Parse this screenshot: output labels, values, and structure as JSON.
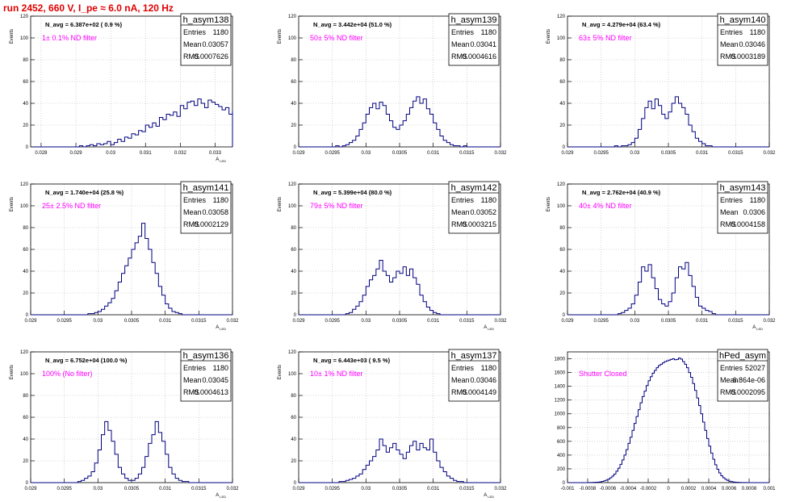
{
  "run_title": "run 2452,   660 V, I_pe ≈ 6.0 nA, 120 Hz",
  "colors": {
    "title": "#e00000",
    "histogram": "#000080",
    "annotation": "#ff00ff",
    "grid": "#b4b4b4",
    "frame": "#000000"
  },
  "stats_labels": {
    "entries": "Entries",
    "mean": "Mean",
    "rms": "RMS"
  },
  "chart_data": [
    {
      "type": "histogram",
      "name": "h_asym138",
      "nevt_text": "N_avg = 6.387e+02 ( 0.9 %)",
      "note": "1± 0.1% ND filter",
      "entries": "1180",
      "mean": "0.03057",
      "rms": "0.0007626",
      "ylabel": "Events",
      "xlabel": "A_LED",
      "xlim": [
        0.0277,
        0.0335
      ],
      "ylim": [
        0,
        120
      ],
      "xticks": [
        "0.028",
        "0.029",
        "0.03",
        "0.031",
        "0.032",
        "0.033"
      ],
      "xtick_values": [
        0.028,
        0.029,
        0.03,
        0.031,
        0.032,
        0.033
      ],
      "yticks": [
        "0",
        "20",
        "40",
        "60",
        "80",
        "100",
        "120"
      ],
      "ytick_values": [
        0,
        20,
        40,
        60,
        80,
        100,
        120
      ],
      "bins": {
        "x0": 0.0278,
        "width": 0.0001,
        "counts": [
          0,
          0,
          0,
          0,
          0,
          0,
          0,
          0,
          0,
          0,
          0,
          0,
          0,
          1,
          0,
          1,
          2,
          1,
          3,
          2,
          3,
          5,
          2,
          4,
          7,
          5,
          9,
          8,
          12,
          11,
          15,
          14,
          20,
          18,
          22,
          19,
          27,
          25,
          30,
          29,
          32,
          28,
          38,
          35,
          41,
          42,
          38,
          44,
          40,
          36,
          43,
          41,
          39,
          37,
          34,
          36,
          30,
          33,
          27,
          29,
          24,
          26,
          20,
          21,
          17,
          18,
          12,
          13,
          9,
          11,
          6,
          7,
          4,
          3,
          2,
          3,
          1,
          1,
          0,
          0,
          1,
          0,
          0,
          0,
          0,
          0,
          0,
          0,
          0,
          0
        ]
      }
    },
    {
      "type": "histogram",
      "name": "h_asym139",
      "nevt_text": "N_avg = 3.442e+04 (51.0 %)",
      "note": "50± 5% ND filter",
      "entries": "1180",
      "mean": "0.03041",
      "rms": "0.0004616",
      "ylabel": "Events",
      "xlabel": "",
      "xlim": [
        0.029,
        0.032
      ],
      "ylim": [
        0,
        120
      ],
      "xticks": [
        "0.029",
        "0.0295",
        "0.03",
        "0.0305",
        "0.031",
        "0.0315",
        "0.032"
      ],
      "xtick_values": [
        0.029,
        0.0295,
        0.03,
        0.0305,
        0.031,
        0.0315,
        0.032
      ],
      "yticks": [
        "0",
        "20",
        "40",
        "60",
        "80",
        "100",
        "120"
      ],
      "ytick_values": [
        0,
        20,
        40,
        60,
        80,
        100,
        120
      ],
      "bins": {
        "x0": 0.029,
        "width": 5e-05,
        "counts": [
          0,
          0,
          0,
          0,
          0,
          0,
          0,
          0,
          0,
          0,
          0,
          1,
          0,
          1,
          2,
          4,
          6,
          10,
          16,
          22,
          30,
          36,
          40,
          35,
          41,
          38,
          30,
          24,
          18,
          16,
          20,
          24,
          30,
          36,
          42,
          46,
          40,
          44,
          35,
          30,
          22,
          16,
          10,
          6,
          4,
          2,
          1,
          1,
          0,
          1,
          0,
          0,
          0,
          0,
          0,
          0,
          0,
          0,
          0,
          0
        ]
      }
    },
    {
      "type": "histogram",
      "name": "h_asym140",
      "nevt_text": "N_avg = 4.279e+04 (63.4 %)",
      "note": "63± 5% ND filter",
      "entries": "1180",
      "mean": "0.03046",
      "rms": "0.0003189",
      "ylabel": "Events",
      "xlabel": "",
      "xlim": [
        0.029,
        0.032
      ],
      "ylim": [
        0,
        120
      ],
      "xticks": [
        "0.029",
        "0.0295",
        "0.03",
        "0.0305",
        "0.031",
        "0.0315",
        "0.032"
      ],
      "xtick_values": [
        0.029,
        0.0295,
        0.03,
        0.0305,
        0.031,
        0.0315,
        0.032
      ],
      "yticks": [
        "0",
        "20",
        "40",
        "60",
        "80",
        "100",
        "120"
      ],
      "ytick_values": [
        0,
        20,
        40,
        60,
        80,
        100,
        120
      ],
      "bins": {
        "x0": 0.029,
        "width": 5e-05,
        "counts": [
          0,
          0,
          0,
          0,
          0,
          0,
          0,
          0,
          0,
          0,
          0,
          0,
          0,
          0,
          1,
          0,
          1,
          1,
          2,
          4,
          8,
          16,
          26,
          36,
          42,
          35,
          44,
          38,
          30,
          26,
          32,
          40,
          46,
          40,
          36,
          30,
          20,
          14,
          8,
          5,
          3,
          1,
          1,
          0,
          0,
          0,
          0,
          0,
          0,
          0,
          0,
          0,
          0,
          0,
          0,
          0,
          0,
          0,
          0,
          0
        ]
      }
    },
    {
      "type": "histogram",
      "name": "h_asym141",
      "nevt_text": "N_avg = 1.740e+04 (25.8 %)",
      "note": "25± 2.5% ND filter",
      "entries": "1180",
      "mean": "0.03058",
      "rms": "0.0002129",
      "ylabel": "Events",
      "xlabel": "A_LED",
      "xlim": [
        0.029,
        0.032
      ],
      "ylim": [
        0,
        120
      ],
      "xticks": [
        "0.029",
        "0.0295",
        "0.03",
        "0.0305",
        "0.031",
        "0.0315",
        "0.032"
      ],
      "xtick_values": [
        0.029,
        0.0295,
        0.03,
        0.0305,
        0.031,
        0.0315,
        0.032
      ],
      "yticks": [
        "0",
        "20",
        "40",
        "60",
        "80",
        "100",
        "120"
      ],
      "ytick_values": [
        0,
        20,
        40,
        60,
        80,
        100,
        120
      ],
      "bins": {
        "x0": 0.029,
        "width": 5e-05,
        "counts": [
          0,
          0,
          0,
          0,
          0,
          0,
          0,
          0,
          0,
          0,
          0,
          0,
          0,
          0,
          0,
          0,
          0,
          1,
          1,
          2,
          3,
          5,
          8,
          11,
          15,
          22,
          30,
          38,
          45,
          52,
          60,
          66,
          72,
          84,
          70,
          60,
          48,
          38,
          26,
          18,
          10,
          6,
          3,
          2,
          1,
          0,
          0,
          0,
          0,
          0,
          0,
          0,
          0,
          0,
          0,
          0,
          0,
          0,
          0,
          0
        ]
      }
    },
    {
      "type": "histogram",
      "name": "h_asym142",
      "nevt_text": "N_avg = 5.399e+04 (80.0 %)",
      "note": "79± 5% ND filter",
      "entries": "1180",
      "mean": "0.03052",
      "rms": "0.0003215",
      "ylabel": "Events",
      "xlabel": "A_LED",
      "xlim": [
        0.029,
        0.032
      ],
      "ylim": [
        0,
        120
      ],
      "xticks": [
        "0.029",
        "0.0295",
        "0.03",
        "0.0305",
        "0.031",
        "0.0315",
        "0.032"
      ],
      "xtick_values": [
        0.029,
        0.0295,
        0.03,
        0.0305,
        0.031,
        0.0315,
        0.032
      ],
      "yticks": [
        "0",
        "20",
        "40",
        "60",
        "80",
        "100",
        "120"
      ],
      "ytick_values": [
        0,
        20,
        40,
        60,
        80,
        100,
        120
      ],
      "bins": {
        "x0": 0.029,
        "width": 5e-05,
        "counts": [
          0,
          0,
          0,
          0,
          0,
          0,
          0,
          0,
          0,
          0,
          0,
          0,
          0,
          0,
          1,
          2,
          5,
          8,
          12,
          18,
          26,
          32,
          36,
          42,
          50,
          40,
          36,
          30,
          34,
          40,
          38,
          44,
          36,
          42,
          34,
          28,
          18,
          12,
          7,
          4,
          2,
          1,
          0,
          0,
          0,
          0,
          0,
          0,
          0,
          0,
          0,
          0,
          0,
          0,
          0,
          0,
          0,
          0,
          0,
          0
        ]
      }
    },
    {
      "type": "histogram",
      "name": "h_asym143",
      "nevt_text": "N_avg = 2.762e+04 (40.9 %)",
      "note": "40± 4% ND filter",
      "entries": "1180",
      "mean": "0.0306",
      "rms": "0.0004158",
      "ylabel": "Events",
      "xlabel": "A_LED",
      "xlim": [
        0.029,
        0.032
      ],
      "ylim": [
        0,
        120
      ],
      "xticks": [
        "0.029",
        "0.0295",
        "0.03",
        "0.0305",
        "0.031",
        "0.0315",
        "0.032"
      ],
      "xtick_values": [
        0.029,
        0.0295,
        0.03,
        0.0305,
        0.031,
        0.0315,
        0.032
      ],
      "yticks": [
        "0",
        "20",
        "40",
        "60",
        "80",
        "100",
        "120"
      ],
      "ytick_values": [
        0,
        20,
        40,
        60,
        80,
        100,
        120
      ],
      "bins": {
        "x0": 0.029,
        "width": 5e-05,
        "counts": [
          0,
          0,
          0,
          0,
          0,
          0,
          0,
          0,
          0,
          0,
          0,
          0,
          0,
          0,
          0,
          1,
          2,
          4,
          6,
          10,
          18,
          30,
          44,
          40,
          46,
          34,
          24,
          14,
          10,
          8,
          12,
          20,
          34,
          44,
          42,
          48,
          36,
          26,
          16,
          8,
          6,
          4,
          3,
          1,
          0,
          0,
          0,
          0,
          0,
          0,
          0,
          0,
          0,
          0,
          0,
          0,
          0,
          0,
          0,
          0
        ]
      }
    },
    {
      "type": "histogram",
      "name": "h_asym136",
      "nevt_text": "N_avg = 6.752e+04 (100.0 %)",
      "note": "100% (No filter)",
      "entries": "1180",
      "mean": "0.03045",
      "rms": "0.0004613",
      "ylabel": "Events",
      "xlabel": "A_LED",
      "xlim": [
        0.029,
        0.032
      ],
      "ylim": [
        0,
        120
      ],
      "xticks": [
        "0.029",
        "0.0295",
        "0.03",
        "0.0305",
        "0.031",
        "0.0315",
        "0.032"
      ],
      "xtick_values": [
        0.029,
        0.0295,
        0.03,
        0.0305,
        0.031,
        0.0315,
        0.032
      ],
      "yticks": [
        "0",
        "20",
        "40",
        "60",
        "80",
        "100",
        "120"
      ],
      "ytick_values": [
        0,
        20,
        40,
        60,
        80,
        100,
        120
      ],
      "bins": {
        "x0": 0.029,
        "width": 5e-05,
        "counts": [
          0,
          0,
          0,
          0,
          0,
          0,
          0,
          0,
          0,
          0,
          0,
          0,
          0,
          0,
          1,
          2,
          4,
          6,
          10,
          18,
          30,
          44,
          56,
          48,
          38,
          26,
          14,
          8,
          4,
          2,
          2,
          4,
          8,
          14,
          24,
          36,
          44,
          56,
          46,
          38,
          26,
          14,
          8,
          4,
          2,
          1,
          1,
          0,
          0,
          0,
          0,
          0,
          0,
          0,
          0,
          0,
          0,
          0,
          0,
          0
        ]
      }
    },
    {
      "type": "histogram",
      "name": "h_asym137",
      "nevt_text": "N_avg = 6.443e+03 ( 9.5 %)",
      "note": "10± 1% ND filter",
      "entries": "1180",
      "mean": "0.03046",
      "rms": "0.0004149",
      "ylabel": "Events",
      "xlabel": "A_LED",
      "xlim": [
        0.029,
        0.032
      ],
      "ylim": [
        0,
        120
      ],
      "xticks": [
        "0.029",
        "0.0295",
        "0.03",
        "0.0305",
        "0.031",
        "0.0315",
        "0.032"
      ],
      "xtick_values": [
        0.029,
        0.0295,
        0.03,
        0.0305,
        0.031,
        0.0315,
        0.032
      ],
      "yticks": [
        "0",
        "20",
        "40",
        "60",
        "80",
        "100",
        "120"
      ],
      "ytick_values": [
        0,
        20,
        40,
        60,
        80,
        100,
        120
      ],
      "bins": {
        "x0": 0.029,
        "width": 5e-05,
        "counts": [
          0,
          0,
          0,
          0,
          0,
          0,
          0,
          0,
          0,
          0,
          0,
          0,
          1,
          1,
          2,
          3,
          4,
          6,
          8,
          12,
          16,
          20,
          24,
          30,
          40,
          34,
          28,
          32,
          36,
          30,
          26,
          22,
          28,
          34,
          38,
          30,
          36,
          32,
          30,
          40,
          28,
          20,
          14,
          10,
          6,
          4,
          2,
          1,
          1,
          0,
          0,
          0,
          0,
          0,
          0,
          0,
          0,
          0,
          0,
          0
        ]
      }
    },
    {
      "type": "histogram",
      "name": "hPed_asym",
      "nevt_text": "",
      "note": "Shutter Closed",
      "entries": "52027",
      "mean": "6.864e-06",
      "rms": "0.0002095",
      "ylabel": "",
      "xlabel": "",
      "xlim": [
        -0.001,
        0.001
      ],
      "ylim": [
        0,
        1900
      ],
      "xticks": [
        "-0.001",
        "-0.0008",
        "-0.0006",
        "-0.0004",
        "-0.0002",
        "0",
        "0.0002",
        "0.0004",
        "0.0006",
        "0.0008",
        "0.001"
      ],
      "xtick_values": [
        -0.001,
        -0.0008,
        -0.0006,
        -0.0004,
        -0.0002,
        0,
        0.0002,
        0.0004,
        0.0006,
        0.0008,
        0.001
      ],
      "yticks": [
        "0",
        "200",
        "400",
        "600",
        "800",
        "1000",
        "1200",
        "1400",
        "1600",
        "1800"
      ],
      "ytick_values": [
        0,
        200,
        400,
        600,
        800,
        1000,
        1200,
        1400,
        1600,
        1800
      ],
      "bins": {
        "x0": -0.001,
        "width": 2e-05,
        "counts": [
          0,
          0,
          0,
          0,
          0,
          0,
          0,
          0,
          0,
          0,
          1,
          2,
          3,
          4,
          6,
          8,
          12,
          18,
          26,
          36,
          50,
          70,
          95,
          125,
          165,
          210,
          265,
          330,
          400,
          480,
          570,
          660,
          760,
          860,
          960,
          1060,
          1160,
          1250,
          1330,
          1410,
          1480,
          1540,
          1590,
          1630,
          1670,
          1700,
          1720,
          1740,
          1760,
          1770,
          1780,
          1790,
          1800,
          1785,
          1790,
          1810,
          1795,
          1760,
          1720,
          1670,
          1600,
          1530,
          1440,
          1340,
          1230,
          1120,
          1000,
          880,
          760,
          640,
          530,
          430,
          340,
          260,
          195,
          140,
          100,
          70,
          48,
          32,
          21,
          14,
          9,
          6,
          4,
          3,
          2,
          1,
          1,
          0,
          0,
          0,
          0,
          0,
          0,
          0,
          0,
          0,
          0,
          0
        ]
      }
    }
  ]
}
